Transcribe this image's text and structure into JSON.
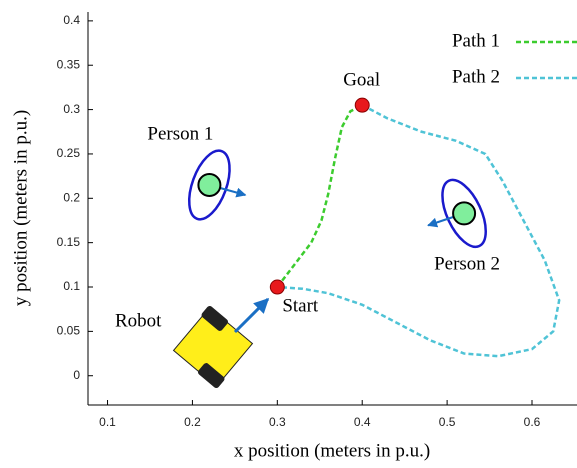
{
  "chart_data": {
    "type": "line",
    "xlabel": "x position (meters in p.u.)",
    "ylabel": "y position (meters in p.u.)",
    "xlim": [
      0.077,
      0.653
    ],
    "xticks": [
      0.1,
      0.2,
      0.3,
      0.4,
      0.5,
      0.6
    ],
    "ylim": [
      -0.033,
      0.41
    ],
    "yticks": [
      0,
      0.05,
      0.1,
      0.15,
      0.2,
      0.25,
      0.3,
      0.35,
      0.4
    ],
    "legend": "top-right",
    "series": [
      {
        "name": "Path 1",
        "color": "#3ccc2e",
        "x": [
          0.3,
          0.32,
          0.34,
          0.352,
          0.36,
          0.368,
          0.376,
          0.386,
          0.4
        ],
        "values": [
          0.1,
          0.125,
          0.15,
          0.175,
          0.205,
          0.245,
          0.28,
          0.298,
          0.305
        ]
      },
      {
        "name": "Path 2",
        "color": "#4fc3d6",
        "x": [
          0.4,
          0.43,
          0.47,
          0.51,
          0.545,
          0.565,
          0.59,
          0.615,
          0.632,
          0.625,
          0.6,
          0.56,
          0.52,
          0.48,
          0.44,
          0.4,
          0.36,
          0.33,
          0.3
        ],
        "values": [
          0.305,
          0.29,
          0.275,
          0.265,
          0.25,
          0.22,
          0.175,
          0.13,
          0.085,
          0.05,
          0.03,
          0.022,
          0.025,
          0.04,
          0.06,
          0.08,
          0.093,
          0.098,
          0.1
        ]
      }
    ],
    "points": [
      {
        "label": "Start",
        "x": 0.3,
        "y": 0.1
      },
      {
        "label": "Goal",
        "x": 0.4,
        "y": 0.305
      }
    ],
    "people": [
      {
        "label": "Person 1",
        "x": 0.22,
        "y": 0.215
      },
      {
        "label": "Person 2",
        "x": 0.52,
        "y": 0.183
      }
    ],
    "robot_label": "Robot"
  }
}
